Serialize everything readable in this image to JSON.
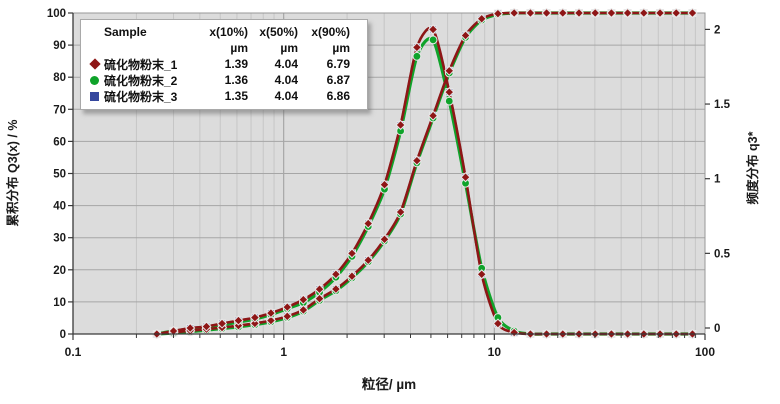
{
  "page": {
    "background": "#ffffff"
  },
  "legend": {
    "header": {
      "sample": "Sample",
      "x10": "x(10%)",
      "x50": "x(50%)",
      "x90": "x(90%)"
    },
    "unit": "µm",
    "samples": [
      {
        "name": "硫化物粉末_1",
        "marker": "diamond",
        "color": "#8e1616",
        "x10": "1.39",
        "x50": "4.04",
        "x90": "6.79"
      },
      {
        "name": "硫化物粉末_2",
        "marker": "circle",
        "color": "#0fa32a",
        "x10": "1.36",
        "x50": "4.04",
        "x90": "6.87"
      },
      {
        "name": "硫化物粉末_3",
        "marker": "square",
        "color": "#35479e",
        "x10": "1.35",
        "x50": "4.04",
        "x90": "6.86"
      }
    ]
  },
  "axes": {
    "x": {
      "label": "粒径/ µm",
      "scale": "log",
      "min": 0.1,
      "max": 100,
      "tick_labels": [
        "0.1",
        "1",
        "10",
        "100"
      ]
    },
    "y_left": {
      "label": "累积分布 Q3(x) / %",
      "min": 0,
      "max": 100,
      "tick_step": 10
    },
    "y_right": {
      "label": "频度分布 q3*",
      "tick_labels": [
        "0",
        "0.5",
        "1",
        "1.5",
        "2"
      ],
      "tick_values": [
        0,
        0.5,
        1,
        1.5,
        2
      ],
      "display_max": 2.15
    }
  },
  "colors": {
    "plot_bg": "#dcdcdc",
    "grid_minor": "#c6c6c6",
    "grid_major": "#a6a6a6",
    "border": "#979797",
    "axis": "#3a3a3a",
    "text": "#1a1a1a",
    "marker_outline": "#e8e8e8",
    "series_red": "#8e1616",
    "series_green": "#0fa32a",
    "series_blue": "#35479e"
  },
  "chart_data": {
    "type": "line",
    "title": "",
    "xlabel": "粒径/ µm",
    "ylabel_left": "累积分布 Q3(x) / %",
    "ylabel_right": "频度分布 q3*",
    "x_scale": "log",
    "xlim": [
      0.1,
      100
    ],
    "ylim_left": [
      0,
      100
    ],
    "ylim_right": [
      0,
      2
    ],
    "grid": true,
    "legend_position": "top-left",
    "x_um": [
      0.25,
      0.3,
      0.36,
      0.43,
      0.51,
      0.61,
      0.73,
      0.87,
      1.04,
      1.24,
      1.48,
      1.77,
      2.11,
      2.52,
      3.01,
      3.59,
      4.29,
      5.12,
      6.11,
      7.3,
      8.71,
      10.4,
      12.42,
      14.83,
      17.7,
      21.13,
      25.23,
      30.12,
      35.95,
      42.92,
      51.24,
      61.17,
      73.02,
      87.18
    ],
    "series": [
      {
        "name": "硫化物粉末_1",
        "color": "#8e1616",
        "marker": "diamond",
        "x10_um": 1.39,
        "x50_um": 4.04,
        "x90_um": 6.79,
        "cumulative_Q3_percent": [
          0,
          0.5,
          1.0,
          1.5,
          2.0,
          2.6,
          3.3,
          4.2,
          5.5,
          7.5,
          11.0,
          14.0,
          18.0,
          23.0,
          29.5,
          38.0,
          54.0,
          68.0,
          82.0,
          93.0,
          98.2,
          99.8,
          100,
          100,
          100,
          100,
          100,
          100,
          100,
          100,
          100,
          100,
          100,
          100
        ],
        "density_q3": [
          0,
          0.02,
          0.04,
          0.05,
          0.07,
          0.09,
          0.11,
          0.14,
          0.18,
          0.23,
          0.3,
          0.4,
          0.54,
          0.74,
          1.0,
          1.4,
          1.92,
          2.04,
          1.62,
          1.05,
          0.4,
          0.07,
          0.01,
          0,
          0,
          0,
          0,
          0,
          0,
          0,
          0,
          0,
          0,
          0
        ]
      },
      {
        "name": "硫化物粉末_2",
        "color": "#0fa32a",
        "marker": "circle",
        "x10_um": 1.36,
        "x50_um": 4.04,
        "x90_um": 6.87,
        "cumulative_Q3_percent": [
          0,
          0.3,
          0.7,
          1.2,
          1.7,
          2.2,
          2.9,
          3.8,
          5.1,
          7.1,
          10.5,
          13.5,
          17.5,
          22.5,
          29.0,
          37.4,
          53.3,
          67.3,
          81.3,
          92.4,
          97.8,
          99.6,
          100,
          100,
          100,
          100,
          100,
          100,
          100,
          100,
          100,
          100,
          100,
          100
        ],
        "density_q3": [
          0,
          0.02,
          0.03,
          0.04,
          0.06,
          0.08,
          0.1,
          0.13,
          0.17,
          0.21,
          0.28,
          0.38,
          0.52,
          0.72,
          0.97,
          1.36,
          1.86,
          1.97,
          1.56,
          1.01,
          0.44,
          0.11,
          0.02,
          0,
          0,
          0,
          0,
          0,
          0,
          0,
          0,
          0,
          0,
          0
        ]
      },
      {
        "name": "硫化物粉末_3",
        "color": "#35479e",
        "marker": "square",
        "x10_um": 1.35,
        "x50_um": 4.04,
        "x90_um": 6.86,
        "cumulative_Q3_percent": [
          0,
          0.5,
          1.0,
          1.5,
          2.0,
          2.6,
          3.3,
          4.2,
          5.5,
          7.5,
          11.0,
          14.0,
          18.0,
          23.0,
          29.5,
          38.0,
          54.0,
          68.0,
          82.0,
          93.0,
          98.2,
          99.8,
          100,
          100,
          100,
          100,
          100,
          100,
          100,
          100,
          100,
          100,
          100,
          100
        ],
        "density_q3": [
          0,
          0.02,
          0.04,
          0.05,
          0.07,
          0.09,
          0.11,
          0.14,
          0.18,
          0.23,
          0.3,
          0.4,
          0.54,
          0.74,
          1.0,
          1.4,
          1.92,
          2.04,
          1.62,
          1.05,
          0.4,
          0.07,
          0.01,
          0,
          0,
          0,
          0,
          0,
          0,
          0,
          0,
          0,
          0,
          0
        ]
      }
    ]
  }
}
